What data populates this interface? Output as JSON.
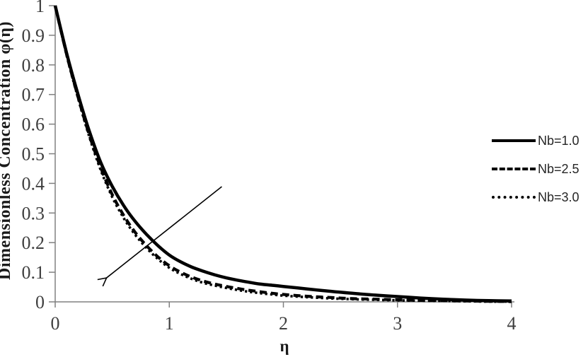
{
  "colors": {
    "curve": "#000000",
    "axis_line": "#808080",
    "tick_label": "#3f3f3f",
    "axis_title": "#1a1a1a",
    "legend_text": "#262626",
    "background": "#ffffff"
  },
  "legend": {
    "items": [
      {
        "label": "Nb=1.0",
        "style": "solid"
      },
      {
        "label": "Nb=2.5",
        "style": "dashed"
      },
      {
        "label": "Nb=3.0",
        "style": "dotted"
      }
    ]
  },
  "chart_data": {
    "type": "line",
    "title": "",
    "xlabel": "η",
    "ylabel": "Dimensionless Concentration φ(η)",
    "xlim": [
      0,
      4
    ],
    "ylim": [
      0,
      1
    ],
    "grid": false,
    "legend_position": "right",
    "x_ticks": [
      [
        0,
        "0"
      ],
      [
        1,
        "1"
      ],
      [
        2,
        "2"
      ],
      [
        3,
        "3"
      ],
      [
        4,
        "4"
      ]
    ],
    "y_ticks": [
      [
        0,
        "0"
      ],
      [
        0.1,
        "0.1"
      ],
      [
        0.2,
        "0.2"
      ],
      [
        0.3,
        "0.3"
      ],
      [
        0.4,
        "0.4"
      ],
      [
        0.5,
        "0.5"
      ],
      [
        0.6,
        "0.6"
      ],
      [
        0.7,
        "0.7"
      ],
      [
        0.8,
        "0.8"
      ],
      [
        0.9,
        "0.9"
      ],
      [
        1,
        "1"
      ]
    ],
    "series": [
      {
        "name": "Nb=1.0",
        "line_style": "solid",
        "color": "#000000",
        "points": [
          [
            0,
            1.0
          ],
          [
            0.1,
            0.84
          ],
          [
            0.2,
            0.7
          ],
          [
            0.3,
            0.575
          ],
          [
            0.4,
            0.47
          ],
          [
            0.5,
            0.39
          ],
          [
            0.6,
            0.325
          ],
          [
            0.7,
            0.272
          ],
          [
            0.8,
            0.228
          ],
          [
            0.9,
            0.19
          ],
          [
            1.0,
            0.158
          ],
          [
            1.1,
            0.135
          ],
          [
            1.2,
            0.117
          ],
          [
            1.3,
            0.103
          ],
          [
            1.4,
            0.091
          ],
          [
            1.5,
            0.081
          ],
          [
            1.6,
            0.073
          ],
          [
            1.7,
            0.066
          ],
          [
            1.8,
            0.06
          ],
          [
            1.9,
            0.056
          ],
          [
            2.0,
            0.052
          ],
          [
            2.2,
            0.044
          ],
          [
            2.4,
            0.036
          ],
          [
            2.6,
            0.029
          ],
          [
            2.8,
            0.023
          ],
          [
            3.0,
            0.018
          ],
          [
            3.2,
            0.013
          ],
          [
            3.4,
            0.009
          ],
          [
            3.6,
            0.006
          ],
          [
            3.8,
            0.004
          ],
          [
            4.0,
            0.003
          ]
        ]
      },
      {
        "name": "Nb=2.5",
        "line_style": "dashed",
        "color": "#000000",
        "points": [
          [
            0,
            1.0
          ],
          [
            0.1,
            0.836
          ],
          [
            0.2,
            0.692
          ],
          [
            0.3,
            0.562
          ],
          [
            0.4,
            0.452
          ],
          [
            0.5,
            0.362
          ],
          [
            0.6,
            0.292
          ],
          [
            0.7,
            0.235
          ],
          [
            0.8,
            0.19
          ],
          [
            0.9,
            0.152
          ],
          [
            1.0,
            0.122
          ],
          [
            1.1,
            0.1
          ],
          [
            1.2,
            0.083
          ],
          [
            1.3,
            0.07
          ],
          [
            1.4,
            0.06
          ],
          [
            1.5,
            0.052
          ],
          [
            1.6,
            0.045
          ],
          [
            1.7,
            0.039
          ],
          [
            1.8,
            0.034
          ],
          [
            1.9,
            0.029
          ],
          [
            2.0,
            0.025
          ],
          [
            2.2,
            0.019
          ],
          [
            2.4,
            0.015
          ],
          [
            2.6,
            0.011
          ],
          [
            2.8,
            0.009
          ],
          [
            3.0,
            0.007
          ],
          [
            3.2,
            0.005
          ],
          [
            3.4,
            0.004
          ],
          [
            3.6,
            0.003
          ],
          [
            3.8,
            0.002
          ],
          [
            4.0,
            0.001
          ]
        ]
      },
      {
        "name": "Nb=3.0",
        "line_style": "dotted",
        "color": "#000000",
        "points": [
          [
            0,
            1.0
          ],
          [
            0.1,
            0.833
          ],
          [
            0.2,
            0.688
          ],
          [
            0.3,
            0.556
          ],
          [
            0.4,
            0.444
          ],
          [
            0.5,
            0.354
          ],
          [
            0.6,
            0.283
          ],
          [
            0.7,
            0.227
          ],
          [
            0.8,
            0.182
          ],
          [
            0.9,
            0.145
          ],
          [
            1.0,
            0.115
          ],
          [
            1.1,
            0.094
          ],
          [
            1.2,
            0.077
          ],
          [
            1.3,
            0.064
          ],
          [
            1.4,
            0.055
          ],
          [
            1.5,
            0.047
          ],
          [
            1.6,
            0.04
          ],
          [
            1.7,
            0.034
          ],
          [
            1.8,
            0.029
          ],
          [
            1.9,
            0.025
          ],
          [
            2.0,
            0.021
          ],
          [
            2.2,
            0.016
          ],
          [
            2.4,
            0.012
          ],
          [
            2.6,
            0.009
          ],
          [
            2.8,
            0.007
          ],
          [
            3.0,
            0.005
          ],
          [
            3.2,
            0.004
          ],
          [
            3.4,
            0.003
          ],
          [
            3.6,
            0.002
          ],
          [
            3.8,
            0.001
          ],
          [
            4.0,
            0.001
          ]
        ]
      }
    ],
    "annotation": {
      "type": "arrow",
      "from_xy": [
        1.46,
        0.389
      ],
      "to_xy": [
        0.45,
        0.081
      ]
    }
  }
}
